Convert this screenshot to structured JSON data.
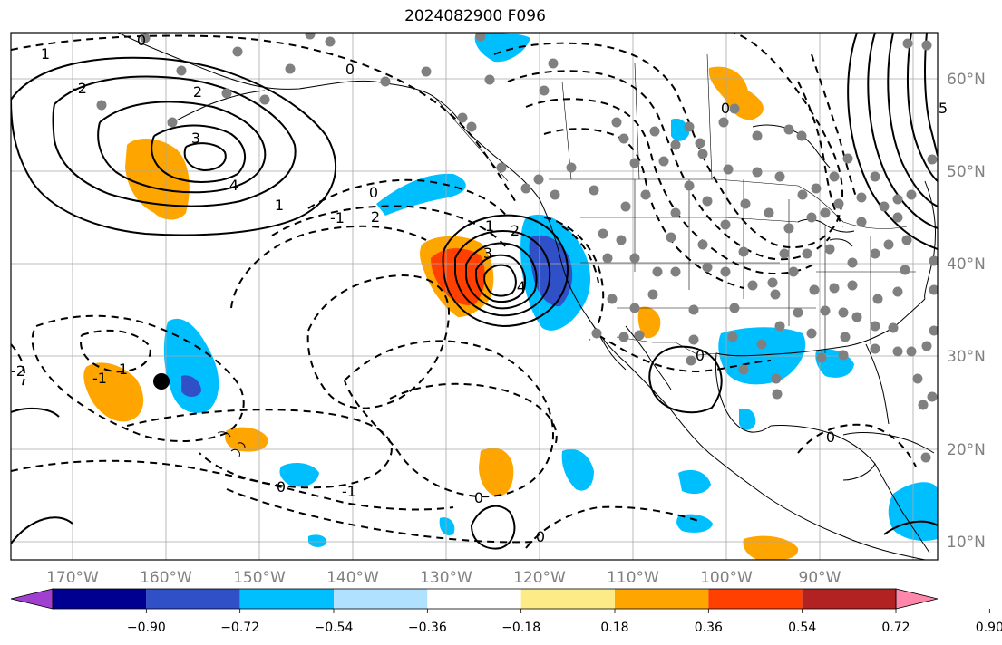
{
  "title": "2024082900 F096",
  "colors": {
    "frame": "#000000",
    "grid": "#a8a8a8",
    "tick_label": "#808080",
    "station": "#808080"
  },
  "map": {
    "longitude_labels": [
      "170°W",
      "160°W",
      "150°W",
      "140°W",
      "130°W",
      "120°W",
      "110°W",
      "100°W",
      "90°W"
    ],
    "latitude_labels": [
      "60°N",
      "50°N",
      "40°N",
      "30°N",
      "20°N",
      "10°N"
    ],
    "contour_labels": [
      "0",
      "1",
      "2",
      "3",
      "4",
      "0",
      "1",
      "2",
      "-1",
      "-2",
      "0",
      "-1",
      "1",
      "0",
      "-1",
      "0",
      "0",
      "1",
      "2",
      "3",
      "4",
      "5",
      "0",
      "0",
      "0",
      "-2"
    ]
  },
  "colorbar": {
    "tick_labels": [
      "−0.90",
      "−0.72",
      "−0.54",
      "−0.36",
      "−0.18",
      "0.18",
      "0.36",
      "0.54",
      "0.72",
      "0.90"
    ],
    "segments": [
      "#a040d0",
      "#000090",
      "#3050c8",
      "#00bfff",
      "#b0e2ff",
      "#ffffff",
      "#fdeb88",
      "#ffa500",
      "#ff4000",
      "#b22222",
      "#ff88aa"
    ]
  }
}
